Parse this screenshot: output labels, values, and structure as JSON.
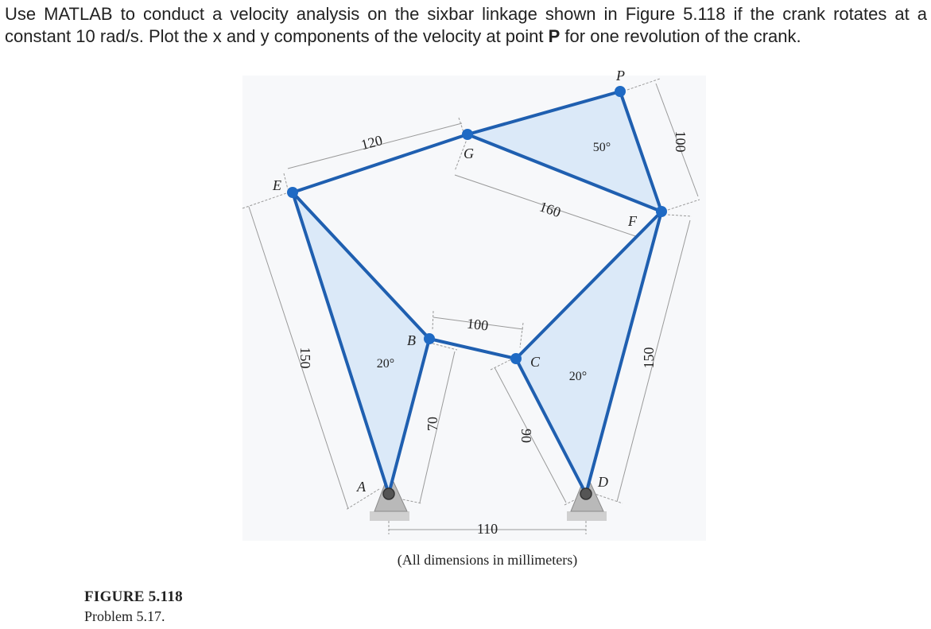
{
  "problem": {
    "before": "Use MATLAB to conduct a velocity analysis on the sixbar linkage shown in Figure 5.118 if the crank rotates at a constant 10 rad/s. Plot the x and y components of the velocity at point ",
    "point": "P",
    "after": " for one revolution of the crank."
  },
  "figure": {
    "points": {
      "P": "P",
      "G": "G",
      "E": "E",
      "F": "F",
      "B": "B",
      "C": "C",
      "A": "A",
      "D": "D"
    },
    "dimensions": {
      "eg": "120",
      "gf": "160",
      "fp": "100",
      "ea": "150",
      "fd": "150",
      "bc": "100",
      "ab": "70",
      "cd": "90",
      "ad": "110"
    },
    "angles": {
      "p": "50°",
      "a": "20°",
      "d": "20°"
    },
    "note": "(All dimensions in millimeters)"
  },
  "caption": {
    "title": "FIGURE 5.118",
    "subtitle": "Problem 5.17."
  },
  "colors": {
    "link": "#1f5fb0",
    "fill": "#dbe9f8",
    "joint": "#1f6ac4",
    "ground": "#b9b9b9"
  }
}
